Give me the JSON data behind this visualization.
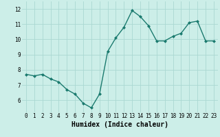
{
  "x": [
    0,
    1,
    2,
    3,
    4,
    5,
    6,
    7,
    8,
    9,
    10,
    11,
    12,
    13,
    14,
    15,
    16,
    17,
    18,
    19,
    20,
    21,
    22,
    23
  ],
  "y": [
    7.7,
    7.6,
    7.7,
    7.4,
    7.2,
    6.7,
    6.4,
    5.8,
    5.5,
    6.4,
    9.2,
    10.1,
    10.8,
    11.9,
    11.5,
    10.9,
    9.9,
    9.9,
    10.2,
    10.4,
    11.1,
    11.2,
    9.9,
    9.9
  ],
  "line_color": "#1a7a6e",
  "marker": "D",
  "marker_size": 2.0,
  "bg_color": "#cceee8",
  "grid_color": "#aad8d2",
  "xlabel": "Humidex (Indice chaleur)",
  "ylabel": "",
  "title": "",
  "xlim": [
    -0.5,
    23.5
  ],
  "ylim": [
    5.2,
    12.5
  ],
  "yticks": [
    6,
    7,
    8,
    9,
    10,
    11,
    12
  ],
  "xticks": [
    0,
    1,
    2,
    3,
    4,
    5,
    6,
    7,
    8,
    9,
    10,
    11,
    12,
    13,
    14,
    15,
    16,
    17,
    18,
    19,
    20,
    21,
    22,
    23
  ],
  "tick_fontsize": 5.5,
  "xlabel_fontsize": 7.0,
  "line_width": 1.0
}
